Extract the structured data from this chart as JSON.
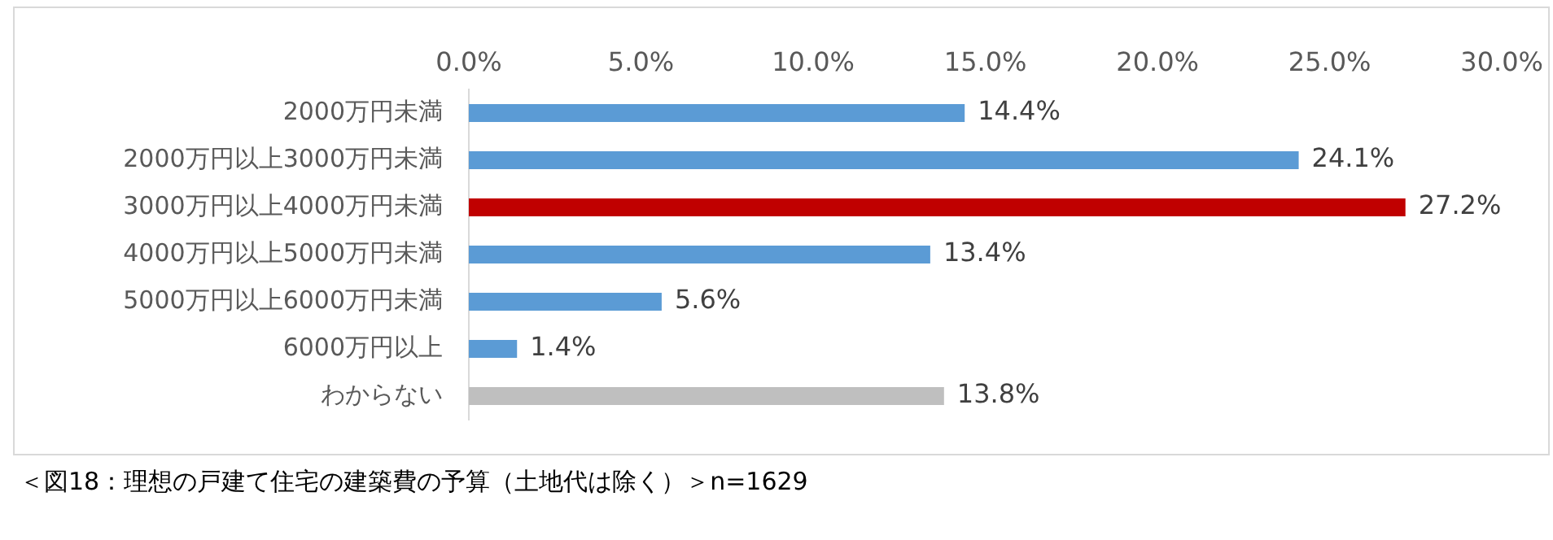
{
  "chart_data": {
    "type": "bar",
    "orientation": "horizontal",
    "categories": [
      "2000万円未満",
      "2000万円以上3000万円未満",
      "3000万円以上4000万円未満",
      "4000万円以上5000万円未満",
      "5000万円以上6000万円未満",
      "6000万円以上",
      "わからない"
    ],
    "values": [
      14.4,
      24.1,
      27.2,
      13.4,
      5.6,
      1.4,
      13.8
    ],
    "colors": [
      "#5b9bd5",
      "#5b9bd5",
      "#c00000",
      "#5b9bd5",
      "#5b9bd5",
      "#5b9bd5",
      "#bfbfbf"
    ],
    "value_labels": [
      "14.4%",
      "24.1%",
      "27.2%",
      "13.4%",
      "5.6%",
      "1.4%",
      "13.8%"
    ],
    "xlim": [
      0,
      30
    ],
    "xticks": [
      {
        "value": 0,
        "label": "0.0%"
      },
      {
        "value": 5,
        "label": "5.0%"
      },
      {
        "value": 10,
        "label": "10.0%"
      },
      {
        "value": 15,
        "label": "15.0%"
      },
      {
        "value": 20,
        "label": "20.0%"
      },
      {
        "value": 25,
        "label": "25.0%"
      },
      {
        "value": 30,
        "label": "30.0%"
      }
    ],
    "annotations": [
      "＜図18：理想の戸建て住宅の建築費の予算（土地代は除く）＞n=1629"
    ]
  }
}
